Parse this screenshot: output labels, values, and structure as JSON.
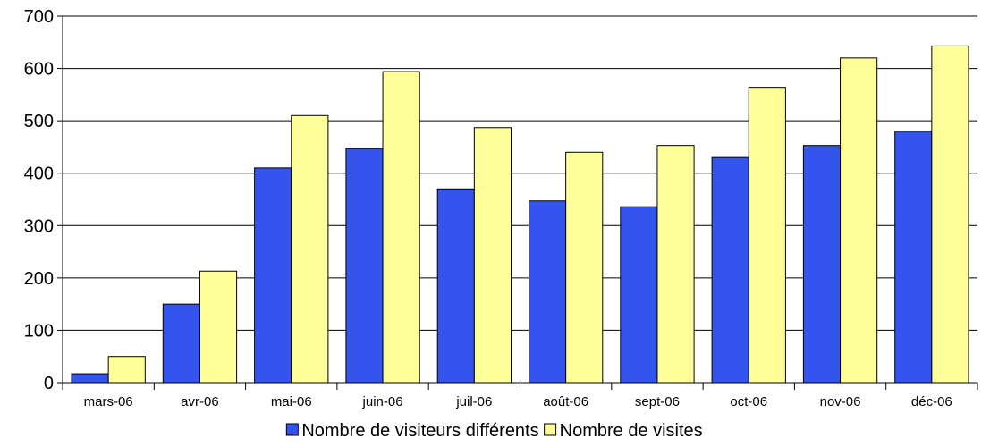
{
  "chart_data": {
    "type": "bar",
    "title": "",
    "xlabel": "",
    "ylabel": "",
    "categories": [
      "mars-06",
      "avr-06",
      "mai-06",
      "juin-06",
      "juil-06",
      "août-06",
      "sept-06",
      "oct-06",
      "nov-06",
      "déc-06"
    ],
    "series": [
      {
        "name": "Nombre de visiteurs différents",
        "color": "#3355ee",
        "values": [
          17,
          150,
          410,
          447,
          370,
          347,
          336,
          430,
          453,
          480
        ]
      },
      {
        "name": "Nombre de visites",
        "color": "#ffff99",
        "values": [
          50,
          213,
          510,
          594,
          487,
          440,
          453,
          564,
          620,
          643
        ]
      }
    ],
    "ylim": [
      0,
      700
    ],
    "yticks": [
      0,
      100,
      200,
      300,
      400,
      500,
      600,
      700
    ],
    "ytick_labels": [
      "0",
      "100",
      "200",
      "300",
      "400",
      "500",
      "600",
      "700"
    ],
    "grid": true,
    "legend_position": "bottom"
  }
}
